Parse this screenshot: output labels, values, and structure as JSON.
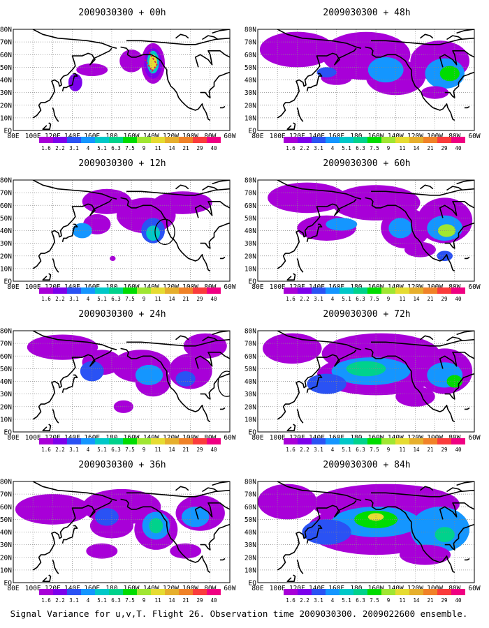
{
  "figure": {
    "caption": "Signal Variance for u,v,T. Flight 26. Observation time 2009030300. 2009022600 ensemble."
  },
  "chart_data": {
    "type": "heatmap",
    "map": {
      "lon_ticks": [
        "80E",
        "100E",
        "120E",
        "140E",
        "160E",
        "180",
        "160W",
        "140W",
        "120W",
        "100W",
        "80W",
        "60W"
      ],
      "lat_ticks": [
        "EQ",
        "10N",
        "20N",
        "30N",
        "40N",
        "50N",
        "60N",
        "70N",
        "80N"
      ],
      "lon_range": [
        80,
        300
      ],
      "lat_range": [
        0,
        80
      ],
      "grid": "dotted"
    },
    "colorbar": {
      "labels": [
        "1.6",
        "2.2",
        "3.1",
        "4",
        "5.1",
        "6.3",
        "7.5",
        "9",
        "11",
        "14",
        "21",
        "29",
        "40"
      ],
      "colors": [
        "#a800d8",
        "#7c00ec",
        "#2a52f4",
        "#1496ff",
        "#00c8c8",
        "#00d28c",
        "#00dc00",
        "#a0e632",
        "#e6dc32",
        "#e6af2d",
        "#f08228",
        "#fa3c3c",
        "#f00082"
      ]
    },
    "panels": [
      {
        "title": "2009030300 + 00h",
        "lead_hours": 0,
        "regions": [
          {
            "lon": 143,
            "lat": 38,
            "rlon": 7,
            "rlat": 7,
            "level": 1
          },
          {
            "lon": 160,
            "lat": 48,
            "rlon": 16,
            "rlat": 5,
            "level": 0
          },
          {
            "lon": 200,
            "lat": 55,
            "rlon": 12,
            "rlat": 9,
            "level": 0
          },
          {
            "lon": 222,
            "lat": 53,
            "rlon": 12,
            "rlat": 16,
            "level": 0
          },
          {
            "lon": 222,
            "lat": 53,
            "rlon": 9,
            "rlat": 12,
            "level": 1
          },
          {
            "lon": 222,
            "lat": 54,
            "rlon": 6,
            "rlat": 9,
            "level": 4
          },
          {
            "lon": 222,
            "lat": 54,
            "rlon": 4,
            "rlat": 6,
            "level": 8
          }
        ],
        "circles": []
      },
      {
        "title": "2009030300 + 12h",
        "lead_hours": 12,
        "regions": [
          {
            "lon": 175,
            "lat": 63,
            "rlon": 25,
            "rlat": 10,
            "level": 0
          },
          {
            "lon": 165,
            "lat": 45,
            "rlon": 14,
            "rlat": 8,
            "level": 0
          },
          {
            "lon": 150,
            "lat": 40,
            "rlon": 10,
            "rlat": 6,
            "level": 3
          },
          {
            "lon": 215,
            "lat": 52,
            "rlon": 30,
            "rlat": 14,
            "level": 0
          },
          {
            "lon": 222,
            "lat": 40,
            "rlon": 12,
            "rlat": 10,
            "level": 2
          },
          {
            "lon": 222,
            "lat": 38,
            "rlon": 7,
            "rlat": 6,
            "level": 4
          },
          {
            "lon": 252,
            "lat": 62,
            "rlon": 30,
            "rlat": 9,
            "level": 0
          },
          {
            "lon": 181,
            "lat": 18,
            "rlon": 3,
            "rlat": 2,
            "level": 0
          }
        ],
        "circles": [
          {
            "lon": 234,
            "lat": 39,
            "rlon": 10,
            "rlat": 10
          }
        ]
      },
      {
        "title": "2009030300 + 24h",
        "lead_hours": 24,
        "regions": [
          {
            "lon": 130,
            "lat": 67,
            "rlon": 36,
            "rlat": 10,
            "level": 0
          },
          {
            "lon": 170,
            "lat": 55,
            "rlon": 20,
            "rlat": 10,
            "level": 0
          },
          {
            "lon": 160,
            "lat": 48,
            "rlon": 12,
            "rlat": 8,
            "level": 2
          },
          {
            "lon": 210,
            "lat": 52,
            "rlon": 30,
            "rlat": 13,
            "level": 0
          },
          {
            "lon": 222,
            "lat": 40,
            "rlon": 18,
            "rlat": 12,
            "level": 0
          },
          {
            "lon": 218,
            "lat": 45,
            "rlon": 14,
            "rlat": 8,
            "level": 3
          },
          {
            "lon": 260,
            "lat": 48,
            "rlon": 22,
            "rlat": 14,
            "level": 0
          },
          {
            "lon": 255,
            "lat": 42,
            "rlon": 10,
            "rlat": 6,
            "level": 2
          },
          {
            "lon": 192,
            "lat": 20,
            "rlon": 10,
            "rlat": 5,
            "level": 0
          },
          {
            "lon": 275,
            "lat": 68,
            "rlon": 22,
            "rlat": 10,
            "level": 0
          }
        ],
        "circles": [
          {
            "lon": 297,
            "lat": 38,
            "rlon": 9,
            "rlat": 10
          }
        ]
      },
      {
        "title": "2009030300 + 36h",
        "lead_hours": 36,
        "regions": [
          {
            "lon": 120,
            "lat": 58,
            "rlon": 38,
            "rlat": 12,
            "level": 0
          },
          {
            "lon": 190,
            "lat": 60,
            "rlon": 40,
            "rlat": 14,
            "level": 0
          },
          {
            "lon": 180,
            "lat": 45,
            "rlon": 22,
            "rlat": 10,
            "level": 0
          },
          {
            "lon": 175,
            "lat": 52,
            "rlon": 12,
            "rlat": 7,
            "level": 2
          },
          {
            "lon": 225,
            "lat": 42,
            "rlon": 22,
            "rlat": 16,
            "level": 0
          },
          {
            "lon": 225,
            "lat": 45,
            "rlon": 14,
            "rlat": 11,
            "level": 3
          },
          {
            "lon": 225,
            "lat": 45,
            "rlon": 7,
            "rlat": 6,
            "level": 5
          },
          {
            "lon": 270,
            "lat": 55,
            "rlon": 25,
            "rlat": 14,
            "level": 0
          },
          {
            "lon": 265,
            "lat": 52,
            "rlon": 14,
            "rlat": 8,
            "level": 3
          },
          {
            "lon": 170,
            "lat": 25,
            "rlon": 16,
            "rlat": 6,
            "level": 0
          },
          {
            "lon": 255,
            "lat": 25,
            "rlon": 16,
            "rlat": 6,
            "level": 0
          }
        ],
        "circles": []
      },
      {
        "title": "2009030300 + 48h",
        "lead_hours": 48,
        "regions": [
          {
            "lon": 120,
            "lat": 64,
            "rlon": 38,
            "rlat": 14,
            "level": 0
          },
          {
            "lon": 190,
            "lat": 60,
            "rlon": 45,
            "rlat": 18,
            "level": 0
          },
          {
            "lon": 190,
            "lat": 50,
            "rlon": 35,
            "rlat": 10,
            "level": 0
          },
          {
            "lon": 220,
            "lat": 42,
            "rlon": 30,
            "rlat": 14,
            "level": 0
          },
          {
            "lon": 210,
            "lat": 48,
            "rlon": 18,
            "rlat": 10,
            "level": 3
          },
          {
            "lon": 265,
            "lat": 55,
            "rlon": 30,
            "rlat": 16,
            "level": 0
          },
          {
            "lon": 270,
            "lat": 45,
            "rlon": 20,
            "rlat": 12,
            "level": 3
          },
          {
            "lon": 275,
            "lat": 45,
            "rlon": 10,
            "rlat": 6,
            "level": 6
          },
          {
            "lon": 160,
            "lat": 42,
            "rlon": 16,
            "rlat": 6,
            "level": 0
          },
          {
            "lon": 150,
            "lat": 46,
            "rlon": 10,
            "rlat": 4,
            "level": 2
          },
          {
            "lon": 260,
            "lat": 30,
            "rlon": 14,
            "rlat": 5,
            "level": 0
          }
        ],
        "circles": []
      },
      {
        "title": "2009030300 + 60h",
        "lead_hours": 60,
        "regions": [
          {
            "lon": 130,
            "lat": 66,
            "rlon": 40,
            "rlat": 12,
            "level": 0
          },
          {
            "lon": 200,
            "lat": 62,
            "rlon": 45,
            "rlat": 14,
            "level": 0
          },
          {
            "lon": 150,
            "lat": 42,
            "rlon": 30,
            "rlat": 10,
            "level": 0
          },
          {
            "lon": 165,
            "lat": 45,
            "rlon": 16,
            "rlat": 5,
            "level": 3
          },
          {
            "lon": 230,
            "lat": 42,
            "rlon": 25,
            "rlat": 16,
            "level": 0
          },
          {
            "lon": 225,
            "lat": 42,
            "rlon": 12,
            "rlat": 8,
            "level": 3
          },
          {
            "lon": 270,
            "lat": 48,
            "rlon": 28,
            "rlat": 18,
            "level": 0
          },
          {
            "lon": 270,
            "lat": 42,
            "rlon": 18,
            "rlat": 10,
            "level": 3
          },
          {
            "lon": 272,
            "lat": 40,
            "rlon": 9,
            "rlat": 5,
            "level": 7
          },
          {
            "lon": 245,
            "lat": 25,
            "rlon": 16,
            "rlat": 6,
            "level": 0
          },
          {
            "lon": 270,
            "lat": 20,
            "rlon": 8,
            "rlat": 4,
            "level": 2
          }
        ],
        "circles": []
      },
      {
        "title": "2009030300 + 72h",
        "lead_hours": 72,
        "regions": [
          {
            "lon": 115,
            "lat": 66,
            "rlon": 30,
            "rlat": 12,
            "level": 0
          },
          {
            "lon": 205,
            "lat": 62,
            "rlon": 60,
            "rlat": 16,
            "level": 0
          },
          {
            "lon": 200,
            "lat": 45,
            "rlon": 60,
            "rlat": 16,
            "level": 0
          },
          {
            "lon": 195,
            "lat": 48,
            "rlon": 40,
            "rlat": 11,
            "level": 3
          },
          {
            "lon": 190,
            "lat": 50,
            "rlon": 20,
            "rlat": 6,
            "level": 5
          },
          {
            "lon": 270,
            "lat": 48,
            "rlon": 28,
            "rlat": 18,
            "level": 0
          },
          {
            "lon": 270,
            "lat": 45,
            "rlon": 18,
            "rlat": 10,
            "level": 3
          },
          {
            "lon": 280,
            "lat": 40,
            "rlon": 8,
            "rlat": 5,
            "level": 6
          },
          {
            "lon": 150,
            "lat": 38,
            "rlon": 20,
            "rlat": 8,
            "level": 2
          },
          {
            "lon": 240,
            "lat": 28,
            "rlon": 20,
            "rlat": 8,
            "level": 0
          }
        ],
        "circles": []
      },
      {
        "title": "2009030300 + 84h",
        "lead_hours": 84,
        "regions": [
          {
            "lon": 110,
            "lat": 64,
            "rlon": 30,
            "rlat": 14,
            "level": 0
          },
          {
            "lon": 210,
            "lat": 62,
            "rlon": 75,
            "rlat": 16,
            "level": 0
          },
          {
            "lon": 200,
            "lat": 42,
            "rlon": 70,
            "rlat": 20,
            "level": 0
          },
          {
            "lon": 200,
            "lat": 48,
            "rlon": 45,
            "rlat": 12,
            "level": 3
          },
          {
            "lon": 200,
            "lat": 50,
            "rlon": 22,
            "rlat": 7,
            "level": 6
          },
          {
            "lon": 200,
            "lat": 52,
            "rlon": 8,
            "rlat": 3,
            "level": 8
          },
          {
            "lon": 150,
            "lat": 40,
            "rlon": 25,
            "rlat": 10,
            "level": 2
          },
          {
            "lon": 265,
            "lat": 42,
            "rlon": 30,
            "rlat": 18,
            "level": 3
          },
          {
            "lon": 270,
            "lat": 38,
            "rlon": 10,
            "rlat": 6,
            "level": 5
          },
          {
            "lon": 250,
            "lat": 22,
            "rlon": 26,
            "rlat": 8,
            "level": 0
          }
        ],
        "circles": []
      }
    ]
  }
}
